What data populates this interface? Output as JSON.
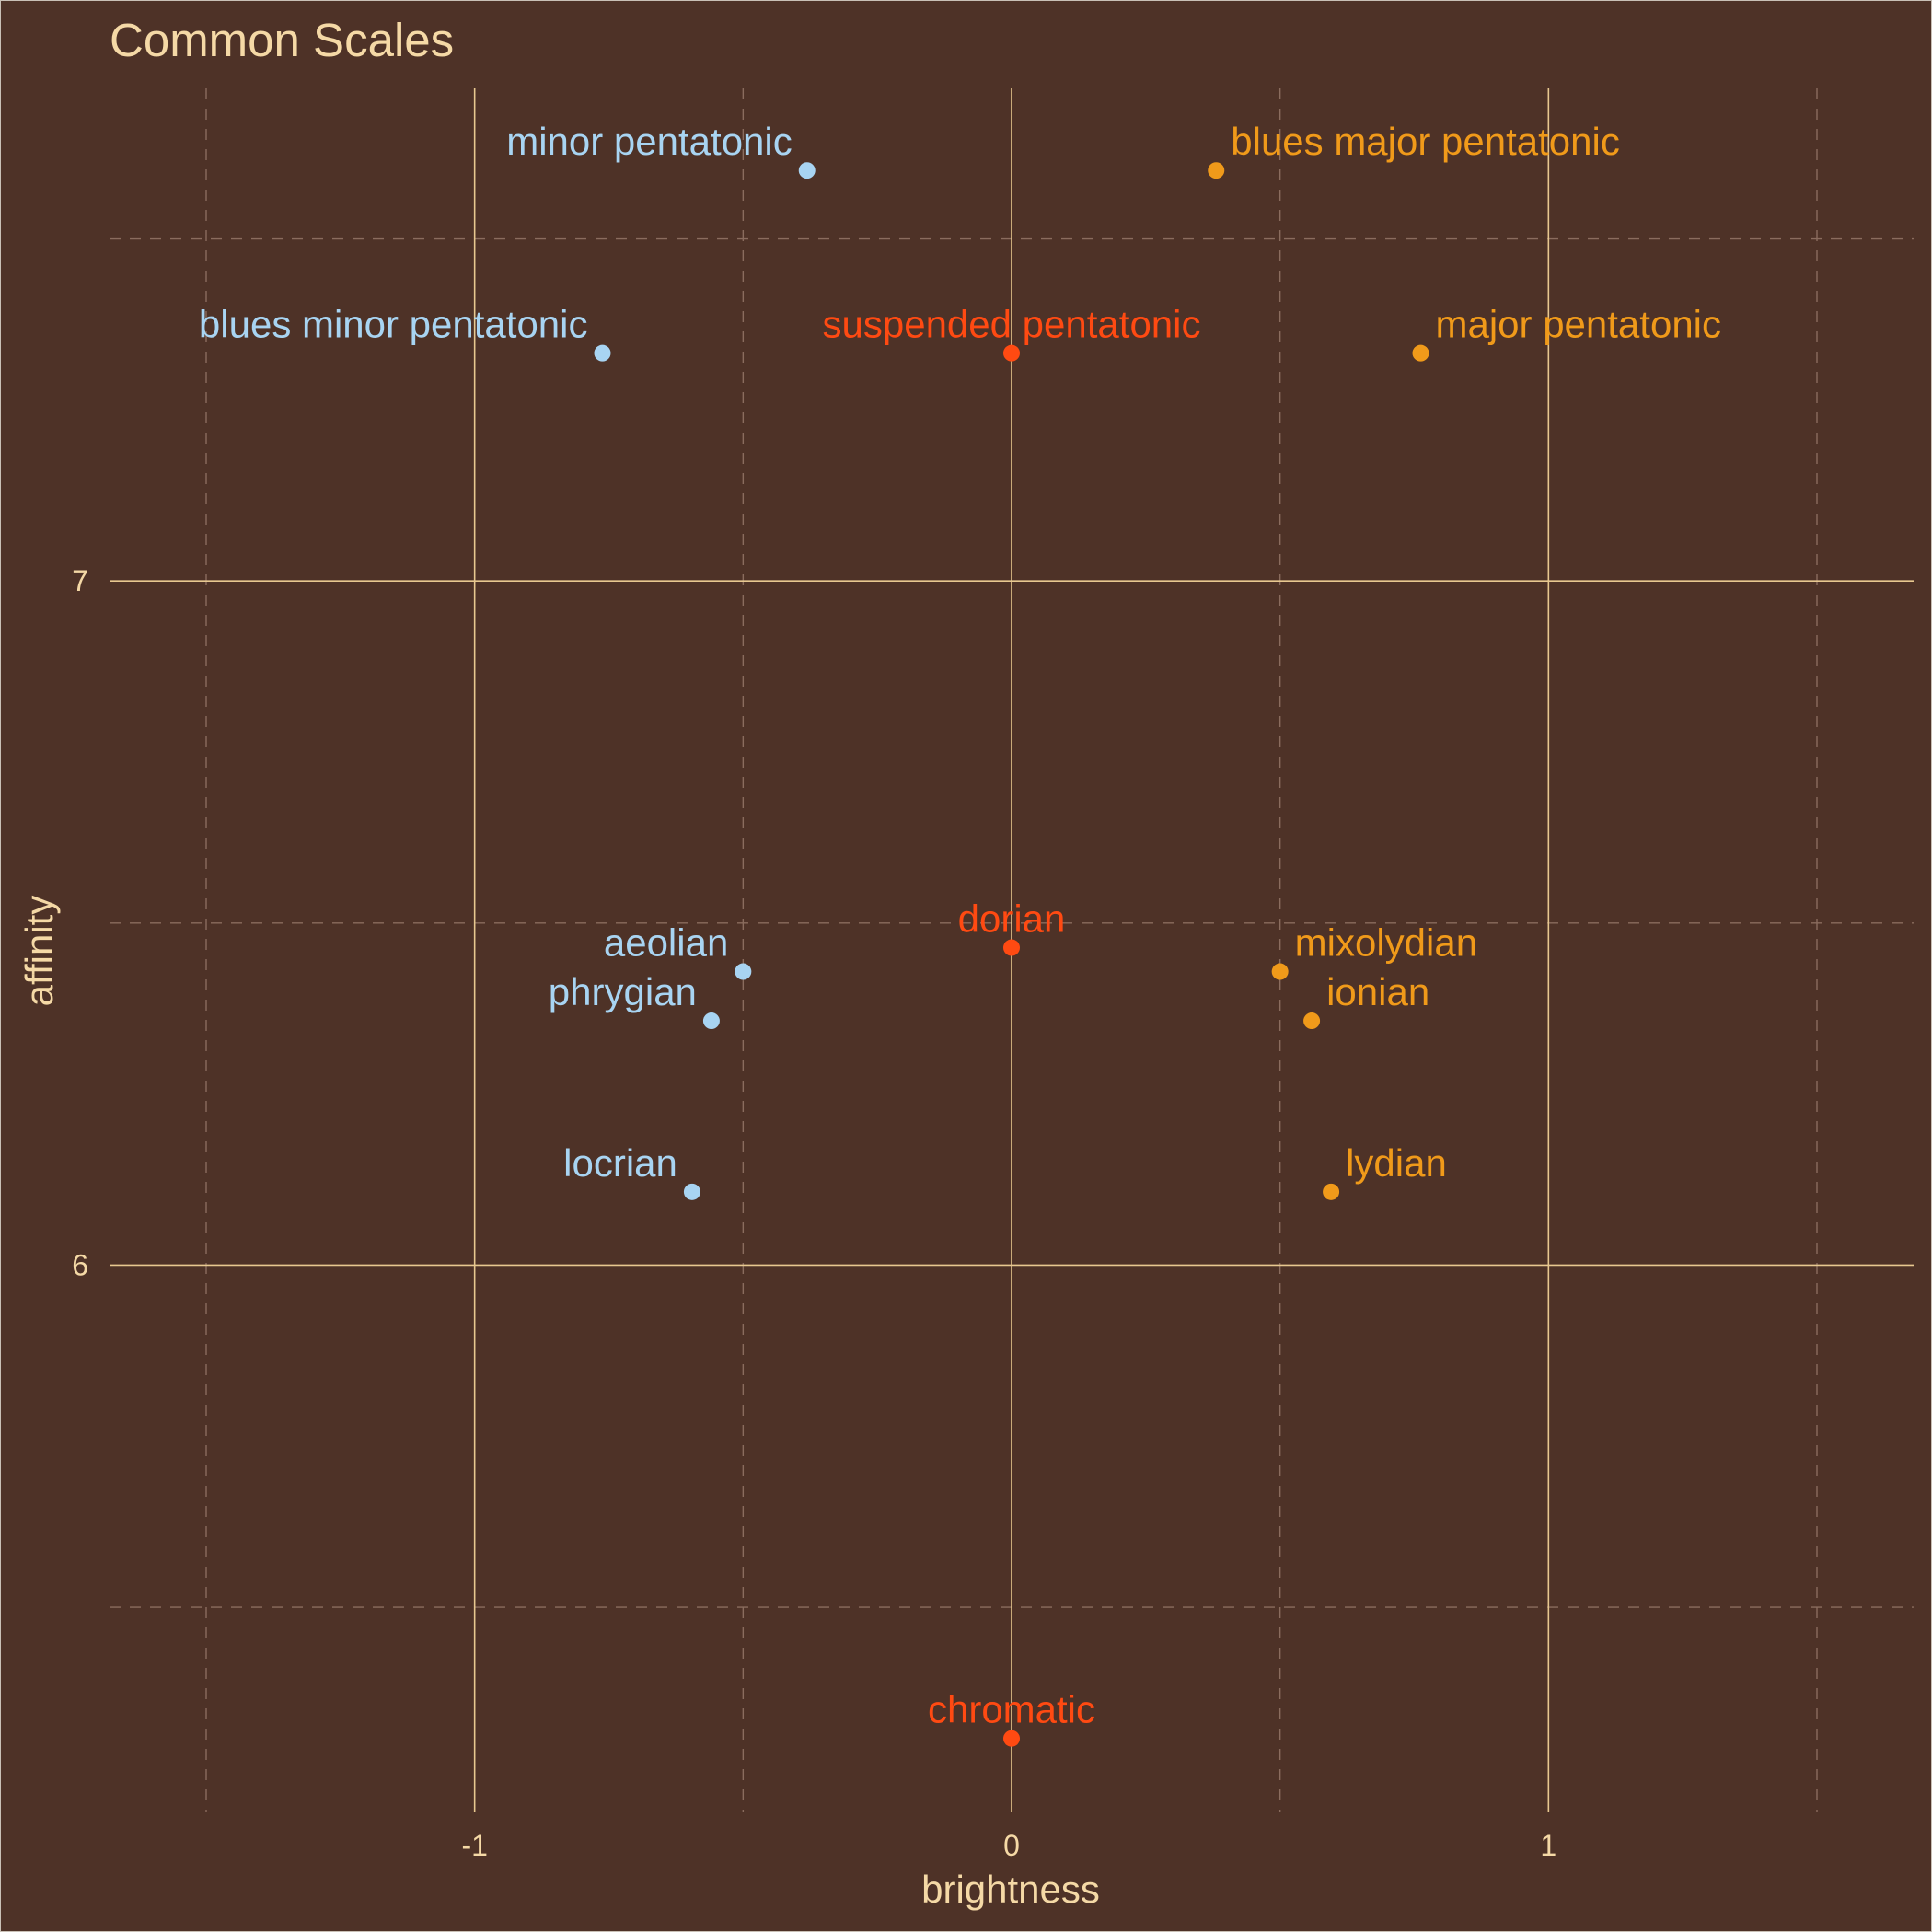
{
  "chart_data": {
    "type": "scatter",
    "title": "Common Scales",
    "xlabel": "brightness",
    "ylabel": "affinity",
    "xlim": [
      -1.68,
      1.68
    ],
    "ylim": [
      5.2,
      7.72
    ],
    "x_major_ticks": [
      -1,
      0,
      1
    ],
    "x_tick_labels": [
      "-1",
      "0",
      "1"
    ],
    "x_minor_ticks": [
      -1.5,
      -0.5,
      0.5,
      1.5
    ],
    "y_major_ticks": [
      6,
      7
    ],
    "y_tick_labels": [
      "6",
      "7"
    ],
    "y_minor_ticks": [
      5.5,
      6.5,
      7.5
    ],
    "grid": true,
    "legend": "none",
    "colors": {
      "background": "#4e3227",
      "minor": "#a8d4f2",
      "neutral": "#ff4a12",
      "major": "#f09a1a"
    },
    "points": [
      {
        "label": "minor pentatonic",
        "x": -0.381,
        "y": 7.6,
        "group": "minor"
      },
      {
        "label": "blues major pentatonic",
        "x": 0.381,
        "y": 7.6,
        "group": "major"
      },
      {
        "label": "blues minor pentatonic",
        "x": -0.762,
        "y": 7.333,
        "group": "minor"
      },
      {
        "label": "suspended pentatonic",
        "x": 0.0,
        "y": 7.333,
        "group": "neutral"
      },
      {
        "label": "major pentatonic",
        "x": 0.762,
        "y": 7.333,
        "group": "major"
      },
      {
        "label": "dorian",
        "x": 0.0,
        "y": 6.464,
        "group": "neutral"
      },
      {
        "label": "aeolian",
        "x": -0.5,
        "y": 6.429,
        "group": "minor"
      },
      {
        "label": "mixolydian",
        "x": 0.5,
        "y": 6.429,
        "group": "major"
      },
      {
        "label": "phrygian",
        "x": -0.559,
        "y": 6.357,
        "group": "minor"
      },
      {
        "label": "ionian",
        "x": 0.559,
        "y": 6.357,
        "group": "major"
      },
      {
        "label": "locrian",
        "x": -0.595,
        "y": 6.107,
        "group": "minor"
      },
      {
        "label": "lydian",
        "x": 0.595,
        "y": 6.107,
        "group": "major"
      },
      {
        "label": "chromatic",
        "x": 0.0,
        "y": 5.308,
        "group": "neutral"
      }
    ]
  }
}
